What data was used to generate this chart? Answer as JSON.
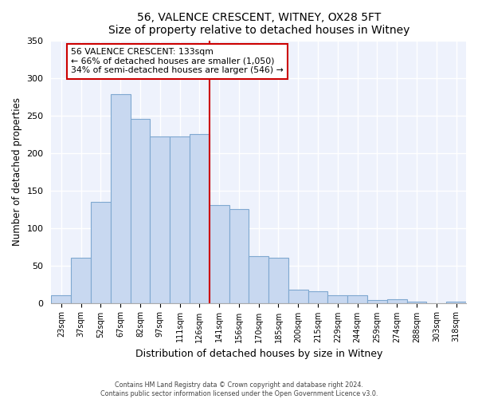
{
  "title": "56, VALENCE CRESCENT, WITNEY, OX28 5FT",
  "subtitle": "Size of property relative to detached houses in Witney",
  "xlabel": "Distribution of detached houses by size in Witney",
  "ylabel": "Number of detached properties",
  "bar_labels": [
    "23sqm",
    "37sqm",
    "52sqm",
    "67sqm",
    "82sqm",
    "97sqm",
    "111sqm",
    "126sqm",
    "141sqm",
    "156sqm",
    "170sqm",
    "185sqm",
    "200sqm",
    "215sqm",
    "229sqm",
    "244sqm",
    "259sqm",
    "274sqm",
    "288sqm",
    "303sqm",
    "318sqm"
  ],
  "bar_heights": [
    10,
    60,
    135,
    278,
    245,
    222,
    222,
    225,
    130,
    125,
    62,
    60,
    18,
    15,
    10,
    10,
    4,
    5,
    2,
    0,
    2
  ],
  "bar_color": "#c8d8f0",
  "bar_edge_color": "#7fa8d0",
  "vline_color": "#cc0000",
  "annotation_title": "56 VALENCE CRESCENT: 133sqm",
  "annotation_line1": "← 66% of detached houses are smaller (1,050)",
  "annotation_line2": "34% of semi-detached houses are larger (546) →",
  "annotation_box_color": "#ffffff",
  "annotation_box_edge_color": "#cc0000",
  "ylim": [
    0,
    350
  ],
  "yticks": [
    0,
    50,
    100,
    150,
    200,
    250,
    300,
    350
  ],
  "footer_line1": "Contains HM Land Registry data © Crown copyright and database right 2024.",
  "footer_line2": "Contains public sector information licensed under the Open Government Licence v3.0.",
  "background_color": "#eef2fc",
  "grid_color": "#ffffff",
  "fig_bg": "#ffffff",
  "title_fontsize": 10,
  "subtitle_fontsize": 9
}
